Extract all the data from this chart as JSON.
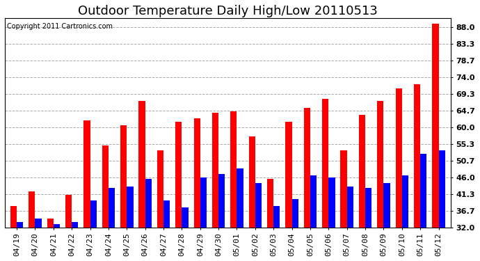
{
  "title": "Outdoor Temperature Daily High/Low 20110513",
  "copyright": "Copyright 2011 Cartronics.com",
  "dates": [
    "04/19",
    "04/20",
    "04/21",
    "04/22",
    "04/23",
    "04/24",
    "04/25",
    "04/26",
    "04/27",
    "04/28",
    "04/29",
    "04/30",
    "05/01",
    "05/02",
    "05/03",
    "05/04",
    "05/05",
    "05/06",
    "05/07",
    "05/08",
    "05/09",
    "05/10",
    "05/11",
    "05/12"
  ],
  "highs": [
    38.0,
    42.0,
    34.5,
    41.0,
    62.0,
    55.0,
    60.5,
    67.5,
    53.5,
    61.5,
    62.5,
    64.0,
    64.5,
    57.5,
    45.5,
    61.5,
    65.5,
    68.0,
    53.5,
    63.5,
    67.5,
    71.0,
    72.0,
    89.0
  ],
  "lows": [
    33.5,
    34.5,
    33.0,
    33.5,
    39.5,
    43.0,
    43.5,
    45.5,
    39.5,
    37.5,
    46.0,
    47.0,
    48.5,
    44.5,
    38.0,
    40.0,
    46.5,
    46.0,
    43.5,
    43.0,
    44.5,
    46.5,
    52.5,
    53.5
  ],
  "high_color": "#ff0000",
  "low_color": "#0000ff",
  "bg_color": "#ffffff",
  "plot_bg_color": "#ffffff",
  "grid_color": "#aaaaaa",
  "yticks": [
    32.0,
    36.7,
    41.3,
    46.0,
    50.7,
    55.3,
    60.0,
    64.7,
    69.3,
    74.0,
    78.7,
    83.3,
    88.0
  ],
  "ymin": 32.0,
  "ymax": 90.5,
  "title_fontsize": 13,
  "tick_fontsize": 8,
  "copyright_fontsize": 7,
  "bar_width": 0.35
}
